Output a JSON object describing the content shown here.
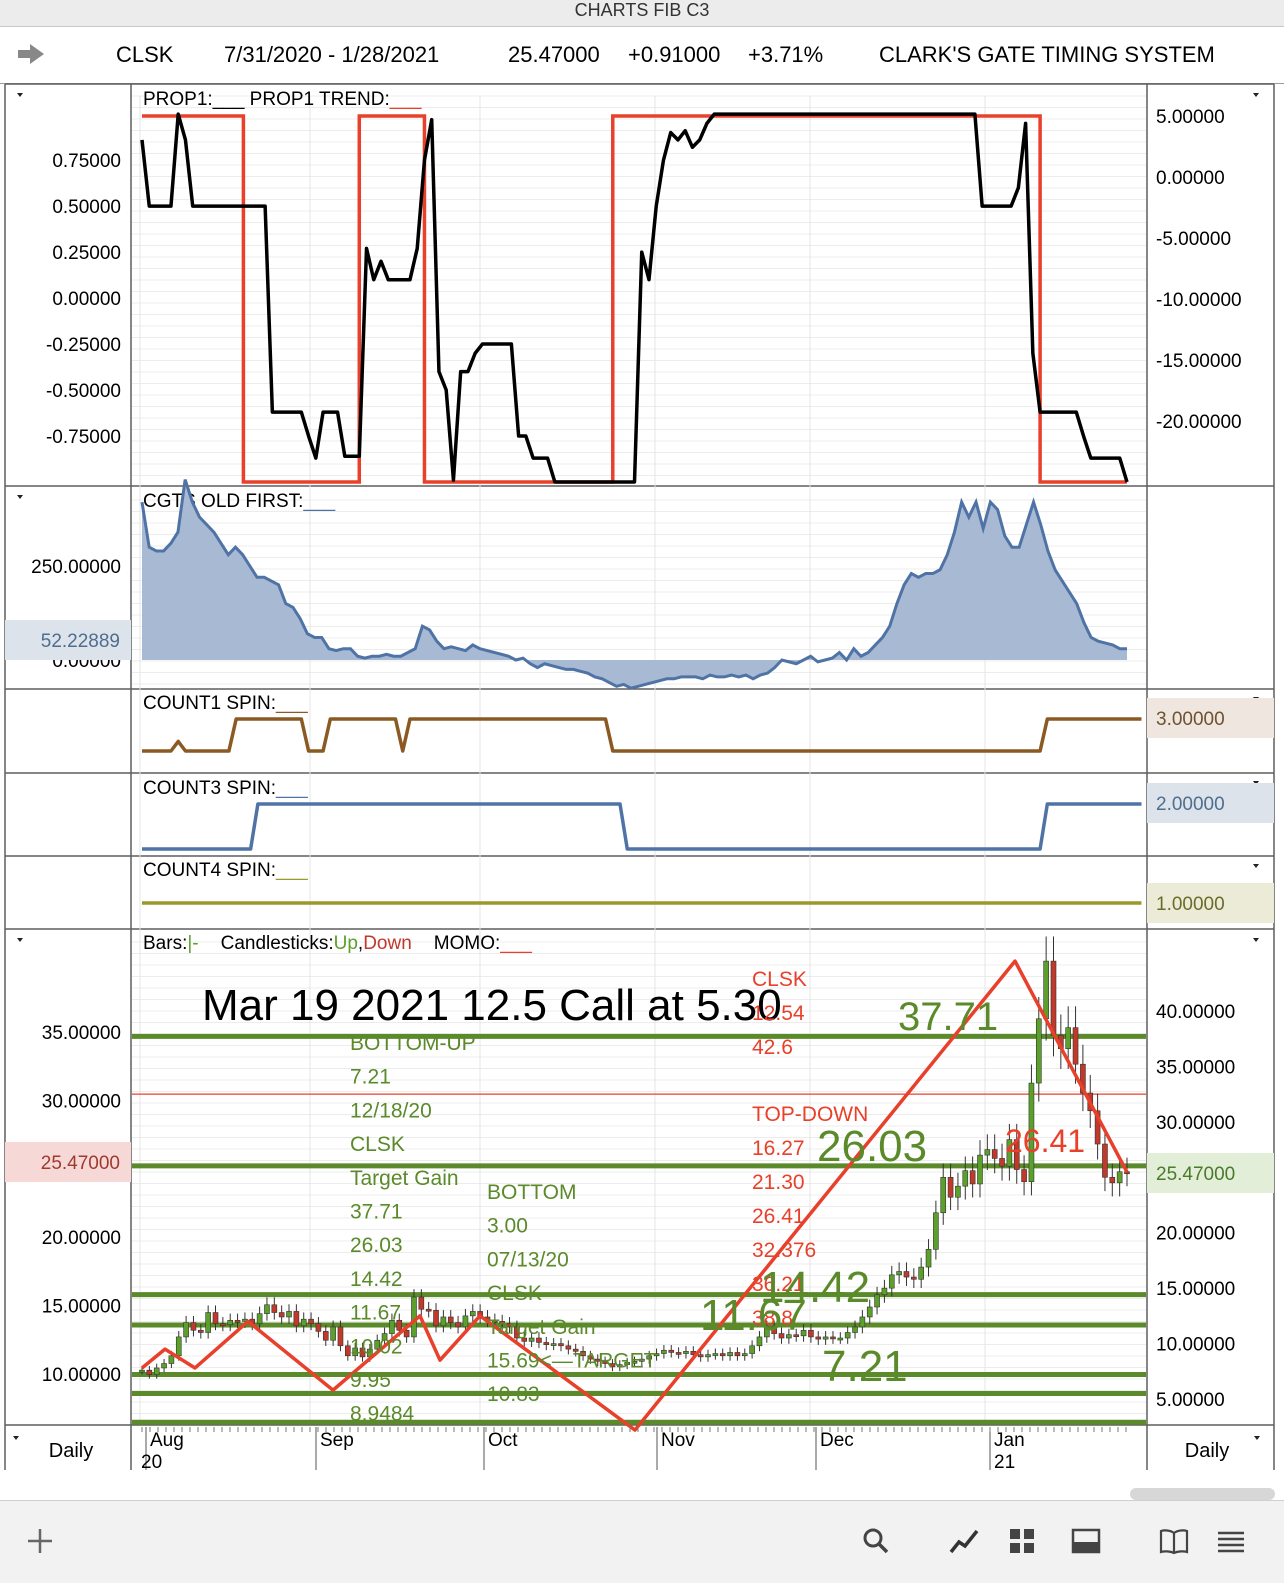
{
  "window_title": "CHARTS FIB C3",
  "header": {
    "symbol": "CLSK",
    "date_range": "7/31/2020 - 1/28/2021",
    "price": "25.47000",
    "change": "+0.91000",
    "change_pct": "+3.71%",
    "system_name": "CLARK'S GATE TIMING SYSTEM"
  },
  "panels": {
    "prop1": {
      "legend": "PROP1:___   PROP1 TREND:",
      "left_ticks": [
        "0.75000",
        "0.50000",
        "0.25000",
        "0.00000",
        "-0.25000",
        "-0.50000",
        "-0.75000"
      ],
      "right_ticks": [
        "5.00000",
        "0.00000",
        "-5.00000",
        "-10.00000",
        "-15.00000",
        "-20.00000"
      ]
    },
    "cgts": {
      "legend": "CGTS OLD FIRST:",
      "left_ticks": [
        "250.00000",
        "0.00000"
      ],
      "current_value": "52.22889"
    },
    "count1": {
      "legend": "COUNT1 SPIN:",
      "current_value": "3.00000"
    },
    "count3": {
      "legend": "COUNT3 SPIN:",
      "current_value": "2.00000"
    },
    "count4": {
      "legend": "COUNT4 SPIN:",
      "current_value": "1.00000"
    },
    "price": {
      "legend_bars": "Bars:",
      "legend_bars_mark": "|-",
      "legend_candles": "Candlesticks:",
      "legend_up": "Up",
      "legend_comma": ",",
      "legend_down": "Down",
      "legend_momo": "MOMO:",
      "left_ticks": [
        "35.00000",
        "30.00000",
        "20.00000",
        "15.00000",
        "10.00000"
      ],
      "current_price_label": "25.47000",
      "right_ticks": [
        "40.00000",
        "35.00000",
        "30.00000",
        "20.00000",
        "15.00000",
        "10.00000",
        "5.00000"
      ],
      "right_price_label": "25.47000"
    }
  },
  "annotations": {
    "main_note": "Mar 19 2021 12.5 Call at 5.30",
    "bottom_up": [
      "BOTTOM-UP",
      "7.21",
      "12/18/20",
      "CLSK",
      "Target Gain",
      "37.71",
      "26.03",
      "14.42",
      "11.67",
      "10.02",
      "9.95",
      "8.9484"
    ],
    "bottom": [
      "BOTTOM",
      "3.00",
      "07/13/20",
      "CLSK",
      "Target Gain",
      "15.69<—TARGET",
      "10.83"
    ],
    "clsk_top": [
      "CLSK",
      "12.54",
      "42.6"
    ],
    "top_down": [
      "TOP-DOWN",
      "16.27",
      "21.30",
      "26.41",
      "32.376",
      "36.21",
      "38.8"
    ],
    "big_levels": {
      "l37": "37.71",
      "l26": "26.03",
      "l2641": "26.41",
      "l14": "14.42",
      "l11": "11.67",
      "l7": "7.21"
    }
  },
  "xaxis": {
    "months": [
      "Aug",
      "Sep",
      "Oct",
      "Nov",
      "Dec",
      "Jan"
    ],
    "years": [
      "20",
      "21"
    ],
    "interval_left": "Daily",
    "interval_right": "Daily"
  },
  "footer_icons": [
    "plus-icon",
    "search-icon",
    "line-chart-icon",
    "grid-icon",
    "panel-icon",
    "book-icon",
    "list-icon"
  ],
  "colors": {
    "prop_line": "#000000",
    "trend_line": "#e8402a",
    "cgts_fill": "#a7b9d3",
    "cgts_line": "#4f73a5",
    "count1": "#8a5a22",
    "count3": "#4f73a5",
    "count4": "#9a9a2a",
    "fib_level": "#5a8a2a",
    "candle_up": "#5aa02a",
    "candle_down": "#c0392b",
    "momo": "#e8402a"
  },
  "chart_data": [
    {
      "type": "line",
      "title": "PROP1 / PROP1 TREND",
      "x": "daily bars 7/31/2020 - 1/28/2021",
      "series": [
        {
          "name": "PROP1",
          "axis": "left",
          "values": [
            0.86,
            0.5,
            0.5,
            0.5,
            0.5,
            1.0,
            0.86,
            0.5,
            0.5,
            0.5,
            0.5,
            0.5,
            0.5,
            0.5,
            0.5,
            0.5,
            0.5,
            0.5,
            -0.62,
            -0.62,
            -0.62,
            -0.62,
            -0.62,
            -0.75,
            -0.87,
            -0.62,
            -0.62,
            -0.62,
            -0.86,
            -0.86,
            -0.86,
            0.27,
            0.1,
            0.2,
            0.1,
            0.1,
            0.1,
            0.1,
            0.27,
            0.75,
            0.97,
            -0.4,
            -0.5,
            -0.99,
            -0.4,
            -0.4,
            -0.3,
            -0.25,
            -0.25,
            -0.25,
            -0.25,
            -0.25,
            -0.75,
            -0.75,
            -0.87,
            -0.87,
            -0.87,
            -1.0,
            -1.0,
            -1.0,
            -1.0,
            -1.0,
            -1.0,
            -1.0,
            -1.0,
            -1.0,
            -1.0,
            -1.0,
            -1.0,
            0.25,
            0.1,
            0.5,
            0.75,
            0.9,
            0.86,
            0.91,
            0.82,
            0.86,
            0.95,
            1.0,
            1.0,
            1.0,
            1.0,
            1.0,
            1.0,
            1.0,
            1.0,
            1.0,
            1.0,
            1.0,
            1.0,
            1.0,
            1.0,
            1.0,
            1.0,
            1.0,
            1.0,
            1.0,
            1.0,
            1.0,
            1.0,
            1.0,
            1.0,
            1.0,
            1.0,
            1.0,
            1.0,
            1.0,
            1.0,
            1.0,
            1.0,
            1.0,
            1.0,
            1.0,
            1.0,
            1.0,
            0.5,
            0.5,
            0.5,
            0.5,
            0.5,
            0.6,
            0.95,
            -0.3,
            -0.62,
            -0.62,
            -0.62,
            -0.62,
            -0.62,
            -0.62,
            -0.75,
            -0.87,
            -0.87,
            -0.87,
            -0.87,
            -0.87,
            -1.0
          ]
        },
        {
          "name": "PROP1 TREND",
          "axis": "right",
          "values": [
            5,
            5,
            5,
            5,
            5,
            5,
            5,
            5,
            5,
            5,
            5,
            5,
            5,
            5,
            -25,
            -25,
            -25,
            -25,
            -25,
            -25,
            -25,
            -25,
            -25,
            -25,
            -25,
            -25,
            -25,
            -25,
            -25,
            -25,
            5,
            5,
            5,
            5,
            5,
            5,
            5,
            5,
            5,
            -25,
            -25,
            -25,
            -25,
            -25,
            -25,
            -25,
            -25,
            -25,
            -25,
            -25,
            -25,
            -25,
            -25,
            -25,
            -25,
            -25,
            -25,
            -25,
            -25,
            -25,
            -25,
            -25,
            -25,
            -25,
            -25,
            5,
            5,
            5,
            5,
            5,
            5,
            5,
            5,
            5,
            5,
            5,
            5,
            5,
            5,
            5,
            5,
            5,
            5,
            5,
            5,
            5,
            5,
            5,
            5,
            5,
            5,
            5,
            5,
            5,
            5,
            5,
            5,
            5,
            5,
            5,
            5,
            5,
            5,
            5,
            5,
            5,
            5,
            5,
            5,
            5,
            5,
            5,
            5,
            5,
            5,
            5,
            5,
            5,
            5,
            5,
            5,
            5,
            5,
            5,
            -25,
            -25,
            -25,
            -25,
            -25,
            -25,
            -25,
            -25,
            -25,
            -25,
            -25,
            -25,
            -25
          ]
        }
      ],
      "ylim_left": [
        -1.0,
        0.95
      ],
      "ylim_right": [
        -25,
        7
      ]
    },
    {
      "type": "area",
      "title": "CGTS OLD FIRST",
      "series": [
        {
          "name": "CGTS OLD FIRST",
          "values": [
            420,
            300,
            290,
            290,
            310,
            340,
            480,
            420,
            380,
            360,
            340,
            310,
            280,
            300,
            280,
            250,
            220,
            220,
            210,
            200,
            150,
            140,
            110,
            70,
            60,
            60,
            30,
            25,
            30,
            30,
            10,
            5,
            10,
            10,
            15,
            10,
            10,
            20,
            30,
            90,
            80,
            50,
            30,
            35,
            30,
            25,
            40,
            30,
            25,
            20,
            15,
            10,
            0,
            5,
            -10,
            -20,
            -10,
            -15,
            -20,
            -25,
            -25,
            -30,
            -35,
            -45,
            -50,
            -60,
            -70,
            -65,
            -75,
            -70,
            -65,
            -60,
            -55,
            -50,
            -50,
            -45,
            -45,
            -45,
            -50,
            -40,
            -45,
            -45,
            -40,
            -45,
            -40,
            -50,
            -40,
            -35,
            -20,
            0,
            -5,
            -10,
            0,
            10,
            -5,
            0,
            5,
            20,
            0,
            30,
            10,
            20,
            40,
            60,
            90,
            150,
            200,
            230,
            220,
            230,
            230,
            240,
            280,
            340,
            420,
            380,
            420,
            350,
            420,
            400,
            330,
            300,
            300,
            360,
            420,
            360,
            290,
            240,
            210,
            180,
            150,
            100,
            60,
            50,
            45,
            40,
            30,
            30
          ]
        }
      ],
      "current_value": 52.22889
    },
    {
      "type": "line",
      "title": "COUNT1 SPIN",
      "series": [
        {
          "name": "COUNT1 SPIN",
          "values": [
            2,
            2,
            2,
            2,
            2,
            2.3,
            2,
            2,
            2,
            2,
            2,
            2,
            2,
            3,
            3,
            3,
            3,
            3,
            3,
            3,
            3,
            3,
            3,
            2,
            2,
            2,
            3,
            3,
            3,
            3,
            3,
            3,
            3,
            3,
            3,
            3,
            2,
            3,
            3,
            3,
            3,
            3,
            3,
            3,
            3,
            3,
            3,
            3,
            3,
            3,
            3,
            3,
            3,
            3,
            3,
            3,
            3,
            3,
            3,
            3,
            3,
            3,
            3,
            3,
            3,
            2,
            2,
            2,
            2,
            2,
            2,
            2,
            2,
            2,
            2,
            2,
            2,
            2,
            2,
            2,
            2,
            2,
            2,
            2,
            2,
            2,
            2,
            2,
            2,
            2,
            2,
            2,
            2,
            2,
            2,
            2,
            2,
            2,
            2,
            2,
            2,
            2,
            2,
            2,
            2,
            2,
            2,
            2,
            2,
            2,
            2,
            2,
            2,
            2,
            2,
            2,
            2,
            2,
            2,
            2,
            2,
            2,
            2,
            2,
            2,
            3,
            3,
            3,
            3,
            3,
            3,
            3,
            3,
            3,
            3,
            3,
            3,
            3,
            3
          ]
        }
      ],
      "current_value": 3
    },
    {
      "type": "line",
      "title": "COUNT3 SPIN",
      "series": [
        {
          "name": "COUNT3 SPIN",
          "values": [
            1,
            1,
            1,
            1,
            1,
            1,
            1,
            1,
            1,
            1,
            1,
            1,
            1,
            1,
            1,
            1,
            2,
            2,
            2,
            2,
            2,
            2,
            2,
            2,
            2,
            2,
            2,
            2,
            2,
            2,
            2,
            2,
            2,
            2,
            2,
            2,
            2,
            2,
            2,
            2,
            2,
            2,
            2,
            2,
            2,
            2,
            2,
            2,
            2,
            2,
            2,
            2,
            2,
            2,
            2,
            2,
            2,
            2,
            2,
            2,
            2,
            2,
            2,
            2,
            2,
            2,
            2,
            1,
            1,
            1,
            1,
            1,
            1,
            1,
            1,
            1,
            1,
            1,
            1,
            1,
            1,
            1,
            1,
            1,
            1,
            1,
            1,
            1,
            1,
            1,
            1,
            1,
            1,
            1,
            1,
            1,
            1,
            1,
            1,
            1,
            1,
            1,
            1,
            1,
            1,
            1,
            1,
            1,
            1,
            1,
            1,
            1,
            1,
            1,
            1,
            1,
            1,
            1,
            1,
            1,
            1,
            1,
            1,
            1,
            1,
            2,
            2,
            2,
            2,
            2,
            2,
            2,
            2,
            2,
            2,
            2,
            2,
            2,
            2
          ]
        }
      ],
      "current_value": 2
    },
    {
      "type": "line",
      "title": "COUNT4 SPIN",
      "series": [
        {
          "name": "COUNT4 SPIN",
          "values": [
            1,
            1,
            1,
            1,
            1,
            1,
            1,
            1,
            1,
            1,
            1,
            1,
            1,
            1,
            1,
            1,
            1,
            1,
            1,
            1,
            1,
            1,
            1,
            1,
            1,
            1,
            1,
            1,
            1,
            1,
            1,
            1,
            1,
            1,
            1,
            1,
            1,
            1,
            1,
            1,
            1,
            1,
            1,
            1,
            1,
            1,
            1,
            1,
            1,
            1,
            1,
            1,
            1,
            1,
            1,
            1,
            1,
            1,
            1,
            1,
            1,
            1,
            1,
            1,
            1,
            1,
            1,
            1,
            1,
            1,
            1,
            1,
            1,
            1,
            1,
            1,
            1,
            1,
            1,
            1,
            1,
            1,
            1,
            1,
            1,
            1,
            1,
            1,
            1,
            1,
            1,
            1,
            1,
            1,
            1,
            1,
            1,
            1,
            1,
            1,
            1,
            1,
            1,
            1,
            1,
            1,
            1,
            1,
            1,
            1,
            1,
            1,
            1,
            1,
            1,
            1,
            1,
            1,
            1,
            1,
            1,
            1,
            1,
            1,
            1,
            1,
            1,
            1,
            1,
            1,
            1,
            1,
            1,
            1,
            1,
            1,
            1,
            1,
            1
          ]
        }
      ],
      "current_value": 1
    },
    {
      "type": "candlestick",
      "title": "CLSK Daily",
      "y_right_range": [
        2.2,
        46.5
      ],
      "fib_levels": [
        37.71,
        26.03,
        14.42,
        11.67,
        7.21,
        5.5,
        2.9
      ],
      "red_reference_level": 32.5,
      "close_series": [
        7.6,
        7.2,
        7.8,
        8.2,
        8.9,
        10.6,
        11.9,
        11.2,
        11.0,
        12.8,
        11.8,
        11.7,
        12.1,
        12.0,
        12.2,
        11.8,
        12.7,
        13.5,
        12.8,
        12.4,
        12.9,
        11.6,
        12.2,
        11.8,
        11.1,
        10.3,
        11.5,
        9.8,
        8.9,
        9.6,
        8.8,
        9.5,
        10.3,
        10.9,
        12.1,
        11.2,
        10.6,
        14.2,
        13.1,
        13.0,
        11.6,
        12.4,
        11.9,
        11.5,
        12.5,
        12.9,
        12.4,
        12.1,
        12.0,
        11.8,
        11.5,
        10.5,
        10.2,
        10.5,
        10.1,
        9.9,
        10.0,
        9.8,
        9.5,
        9.3,
        8.9,
        8.6,
        8.4,
        8.2,
        7.9,
        8.1,
        8.3,
        8.4,
        8.6,
        8.9,
        9.1,
        9.4,
        9.2,
        9.1,
        9.3,
        9.0,
        8.8,
        9.0,
        9.1,
        8.9,
        9.2,
        8.9,
        9.1,
        9.8,
        10.6,
        11.5,
        10.9,
        10.5,
        10.8,
        10.7,
        11.2,
        10.6,
        10.4,
        10.6,
        10.5,
        10.5,
        11.0,
        11.5,
        12.4,
        13.3,
        14.4,
        15.0,
        16.2,
        16.5,
        16.0,
        15.8,
        16.9,
        18.5,
        21.8,
        25.0,
        23.2,
        24.2,
        25.6,
        24.4,
        27.0,
        27.5,
        26.7,
        26.0,
        28.4,
        25.7,
        24.6,
        33.5,
        39.3,
        44.5,
        37.8,
        36.6,
        38.5,
        35.2,
        32.6,
        31.0,
        28.0,
        25.0,
        24.5,
        25.5,
        25.47
      ]
    }
  ]
}
